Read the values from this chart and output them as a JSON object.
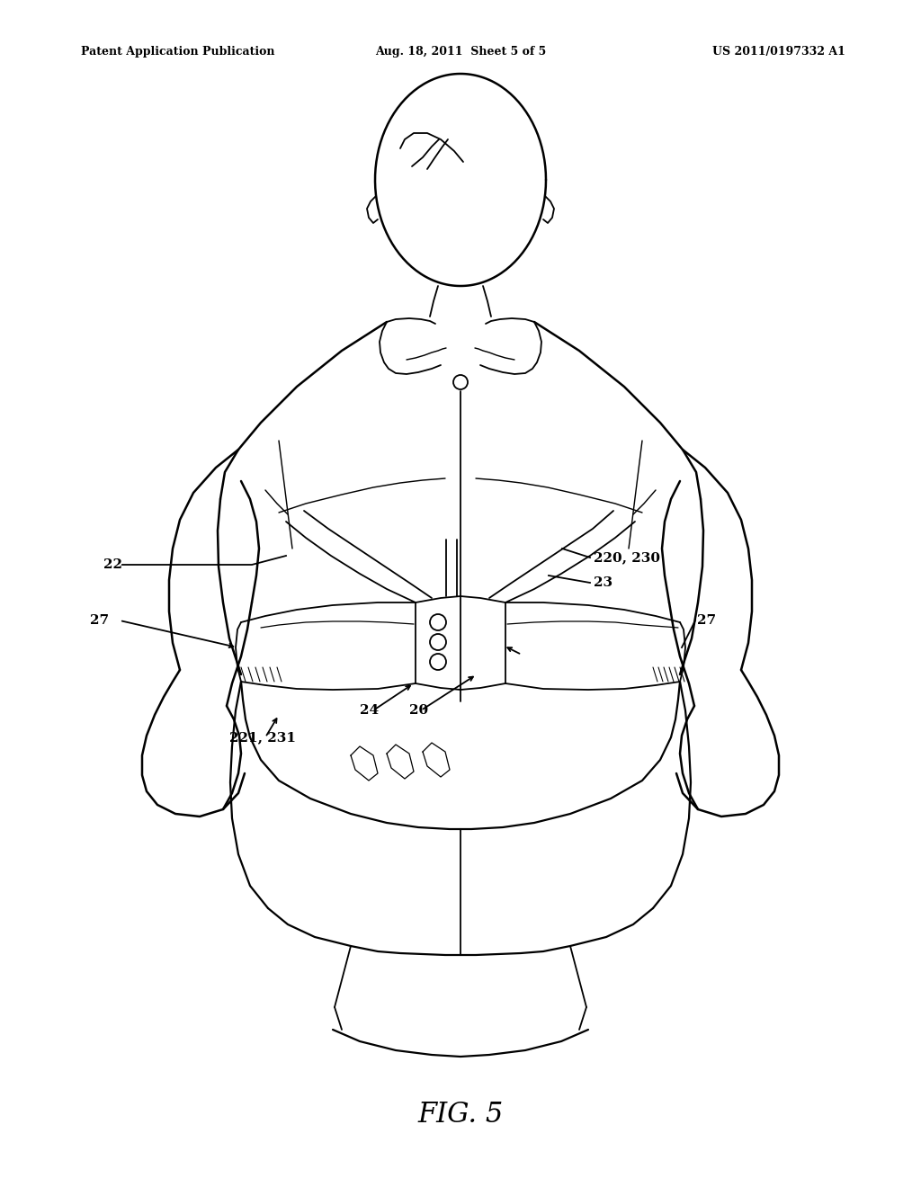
{
  "background_color": "#ffffff",
  "header_left": "Patent Application Publication",
  "header_center": "Aug. 18, 2011  Sheet 5 of 5",
  "header_right": "US 2011/0197332 A1",
  "figure_label": "FIG. 5",
  "line_color": "#000000",
  "line_width": 1.3,
  "labels": {
    "220_230": {
      "text": "220, 230"
    },
    "23": {
      "text": "23"
    },
    "22": {
      "text": "22"
    },
    "27_left": {
      "text": "27"
    },
    "27_right": {
      "text": "27"
    },
    "24": {
      "text": "24"
    },
    "20": {
      "text": "20"
    },
    "221_231": {
      "text": "221, 231"
    }
  }
}
